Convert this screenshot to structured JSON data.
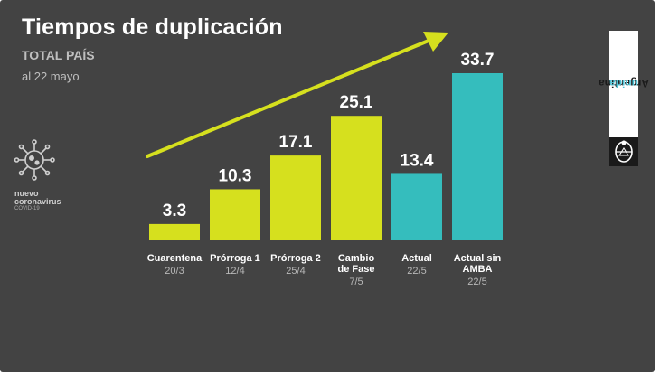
{
  "header": {
    "title": "Tiempos de duplicación",
    "subtitle": "TOTAL PAÍS",
    "date": "al 22 mayo"
  },
  "brand": {
    "line1": "nuevo",
    "line2": "coronavirus",
    "line3": "COVID-19",
    "icon": "virus-icon"
  },
  "logo": {
    "word1": "Argentina",
    "word2": "unida",
    "seal_icon": "national-seal-icon"
  },
  "colors": {
    "background": "#434343",
    "lime": "#d6e01e",
    "teal": "#35bdbd",
    "arrow": "#d6e01e",
    "value_text": "#ffffff",
    "label_text": "#ffffff",
    "date_text": "#b8b8b8"
  },
  "chart_data": {
    "type": "bar",
    "categories": [
      "Cuarentena",
      "Prórroga 1",
      "Prórroga 2",
      "Cambio de Fase",
      "Actual",
      "Actual sin AMBA"
    ],
    "category_lines": [
      [
        "Cuarentena"
      ],
      [
        "Prórroga 1"
      ],
      [
        "Prórroga 2"
      ],
      [
        "Cambio",
        "de Fase"
      ],
      [
        "Actual"
      ],
      [
        "Actual sin",
        "AMBA"
      ]
    ],
    "dates": [
      "20/3",
      "12/4",
      "25/4",
      "7/5",
      "22/5",
      "22/5"
    ],
    "values": [
      3.3,
      10.3,
      17.1,
      25.1,
      13.4,
      33.7
    ],
    "value_labels": [
      "3.3",
      "10.3",
      "17.1",
      "25.1",
      "13.4",
      "33.7"
    ],
    "bar_colors": [
      "lime",
      "lime",
      "lime",
      "lime",
      "teal",
      "teal"
    ],
    "ylim": [
      0,
      33.7
    ],
    "grid": false,
    "legend": "none",
    "annotation": "upward-trend-arrow"
  }
}
